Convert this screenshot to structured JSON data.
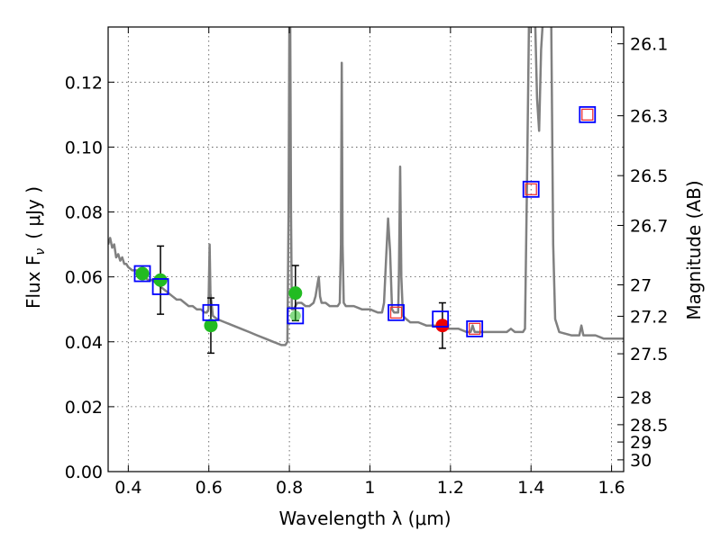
{
  "chart_data": {
    "type": "scatter",
    "xlabel": "Wavelength  λ (μm)",
    "ylabel": "Flux  F",
    "ylabel_sub": "ν",
    "ylabel_unit": "( μJy )",
    "y2label": "Magnitude (AB)",
    "xlim": [
      0.35,
      1.63
    ],
    "ylim": [
      0.0,
      0.137
    ],
    "grid": true,
    "x_ticks": [
      0.4,
      0.6,
      0.8,
      1.0,
      1.2,
      1.4,
      1.6
    ],
    "x_tick_labels": [
      "0.4",
      "0.6",
      "0.8",
      "1",
      "1.2",
      "1.4",
      "1.6"
    ],
    "y_ticks": [
      0.0,
      0.02,
      0.04,
      0.06,
      0.08,
      0.1,
      0.12
    ],
    "y_tick_labels": [
      "0.00",
      "0.02",
      "0.04",
      "0.06",
      "0.08",
      "0.10",
      "0.12"
    ],
    "mag_ticks": [
      "26.1",
      "26.3",
      "26.5",
      "26.7",
      "27",
      "27.2",
      "27.5",
      "28",
      "28.5",
      "29",
      "30"
    ],
    "colors": {
      "spectrum": "#808080",
      "model": "#0000ff",
      "observed_green": "#22bb22",
      "observed_red": "#ee0000",
      "model_inner": "#ee3333",
      "errorbar": "#000000",
      "grid": "#aaaaaa"
    },
    "series": [
      {
        "kind": "spectrum",
        "points": [
          [
            0.35,
            0.07
          ],
          [
            0.355,
            0.072
          ],
          [
            0.36,
            0.069
          ],
          [
            0.365,
            0.07
          ],
          [
            0.37,
            0.066
          ],
          [
            0.375,
            0.067
          ],
          [
            0.38,
            0.065
          ],
          [
            0.385,
            0.066
          ],
          [
            0.39,
            0.064
          ],
          [
            0.395,
            0.064
          ],
          [
            0.4,
            0.063
          ],
          [
            0.41,
            0.062
          ],
          [
            0.42,
            0.062
          ],
          [
            0.43,
            0.061
          ],
          [
            0.44,
            0.06
          ],
          [
            0.45,
            0.059
          ],
          [
            0.46,
            0.059
          ],
          [
            0.47,
            0.058
          ],
          [
            0.48,
            0.057
          ],
          [
            0.49,
            0.056
          ],
          [
            0.5,
            0.055
          ],
          [
            0.51,
            0.054
          ],
          [
            0.52,
            0.053
          ],
          [
            0.53,
            0.053
          ],
          [
            0.54,
            0.052
          ],
          [
            0.55,
            0.051
          ],
          [
            0.56,
            0.051
          ],
          [
            0.57,
            0.05
          ],
          [
            0.58,
            0.05
          ],
          [
            0.59,
            0.049
          ],
          [
            0.595,
            0.049
          ],
          [
            0.599,
            0.05
          ],
          [
            0.602,
            0.07
          ],
          [
            0.604,
            0.055
          ],
          [
            0.61,
            0.048
          ],
          [
            0.62,
            0.047
          ],
          [
            0.64,
            0.046
          ],
          [
            0.66,
            0.045
          ],
          [
            0.68,
            0.044
          ],
          [
            0.7,
            0.043
          ],
          [
            0.72,
            0.042
          ],
          [
            0.74,
            0.041
          ],
          [
            0.76,
            0.04
          ],
          [
            0.78,
            0.039
          ],
          [
            0.79,
            0.039
          ],
          [
            0.795,
            0.04
          ],
          [
            0.798,
            0.08
          ],
          [
            0.8,
            0.14
          ],
          [
            0.802,
            0.14
          ],
          [
            0.804,
            0.08
          ],
          [
            0.806,
            0.05
          ],
          [
            0.81,
            0.05
          ],
          [
            0.82,
            0.052
          ],
          [
            0.83,
            0.052
          ],
          [
            0.84,
            0.051
          ],
          [
            0.85,
            0.051
          ],
          [
            0.86,
            0.052
          ],
          [
            0.865,
            0.054
          ],
          [
            0.87,
            0.058
          ],
          [
            0.873,
            0.06
          ],
          [
            0.876,
            0.054
          ],
          [
            0.88,
            0.052
          ],
          [
            0.89,
            0.052
          ],
          [
            0.9,
            0.051
          ],
          [
            0.91,
            0.051
          ],
          [
            0.92,
            0.051
          ],
          [
            0.925,
            0.052
          ],
          [
            0.928,
            0.07
          ],
          [
            0.93,
            0.126
          ],
          [
            0.932,
            0.07
          ],
          [
            0.935,
            0.052
          ],
          [
            0.94,
            0.051
          ],
          [
            0.96,
            0.051
          ],
          [
            0.98,
            0.05
          ],
          [
            1.0,
            0.05
          ],
          [
            1.02,
            0.049
          ],
          [
            1.03,
            0.049
          ],
          [
            1.035,
            0.052
          ],
          [
            1.04,
            0.065
          ],
          [
            1.045,
            0.078
          ],
          [
            1.05,
            0.068
          ],
          [
            1.055,
            0.05
          ],
          [
            1.06,
            0.049
          ],
          [
            1.07,
            0.049
          ],
          [
            1.072,
            0.06
          ],
          [
            1.075,
            0.094
          ],
          [
            1.078,
            0.06
          ],
          [
            1.082,
            0.048
          ],
          [
            1.09,
            0.047
          ],
          [
            1.1,
            0.046
          ],
          [
            1.12,
            0.046
          ],
          [
            1.14,
            0.045
          ],
          [
            1.16,
            0.045
          ],
          [
            1.18,
            0.044
          ],
          [
            1.2,
            0.044
          ],
          [
            1.22,
            0.044
          ],
          [
            1.24,
            0.043
          ],
          [
            1.25,
            0.043
          ],
          [
            1.255,
            0.045
          ],
          [
            1.26,
            0.043
          ],
          [
            1.28,
            0.043
          ],
          [
            1.3,
            0.043
          ],
          [
            1.32,
            0.043
          ],
          [
            1.34,
            0.043
          ],
          [
            1.35,
            0.044
          ],
          [
            1.36,
            0.043
          ],
          [
            1.38,
            0.043
          ],
          [
            1.385,
            0.044
          ],
          [
            1.39,
            0.09
          ],
          [
            1.395,
            0.14
          ],
          [
            1.4,
            0.14
          ],
          [
            1.41,
            0.14
          ],
          [
            1.415,
            0.115
          ],
          [
            1.42,
            0.105
          ],
          [
            1.425,
            0.13
          ],
          [
            1.43,
            0.14
          ],
          [
            1.44,
            0.14
          ],
          [
            1.45,
            0.14
          ],
          [
            1.455,
            0.07
          ],
          [
            1.46,
            0.047
          ],
          [
            1.47,
            0.043
          ],
          [
            1.5,
            0.042
          ],
          [
            1.52,
            0.042
          ],
          [
            1.525,
            0.045
          ],
          [
            1.53,
            0.042
          ],
          [
            1.56,
            0.042
          ],
          [
            1.58,
            0.041
          ],
          [
            1.6,
            0.041
          ],
          [
            1.63,
            0.041
          ]
        ]
      },
      {
        "kind": "model_squares",
        "points": [
          {
            "x": 0.435,
            "y": 0.061,
            "inner": "green"
          },
          {
            "x": 0.48,
            "y": 0.057,
            "inner": "none"
          },
          {
            "x": 0.605,
            "y": 0.049,
            "inner": "none"
          },
          {
            "x": 0.815,
            "y": 0.048,
            "inner": "green"
          },
          {
            "x": 1.065,
            "y": 0.049,
            "inner": "red"
          },
          {
            "x": 1.175,
            "y": 0.047,
            "inner": "none"
          },
          {
            "x": 1.26,
            "y": 0.044,
            "inner": "red"
          },
          {
            "x": 1.4,
            "y": 0.087,
            "inner": "red"
          },
          {
            "x": 1.54,
            "y": 0.11,
            "inner": "red"
          }
        ]
      },
      {
        "kind": "observed",
        "points": [
          {
            "x": 0.435,
            "y": 0.061,
            "color": "green"
          },
          {
            "x": 0.48,
            "y": 0.059,
            "err": 0.0105,
            "color": "green"
          },
          {
            "x": 0.605,
            "y": 0.045,
            "err": 0.0085,
            "color": "green"
          },
          {
            "x": 0.815,
            "y": 0.055,
            "err": 0.0085,
            "color": "green"
          },
          {
            "x": 1.18,
            "y": 0.045,
            "err": 0.007,
            "color": "red"
          }
        ]
      }
    ]
  }
}
